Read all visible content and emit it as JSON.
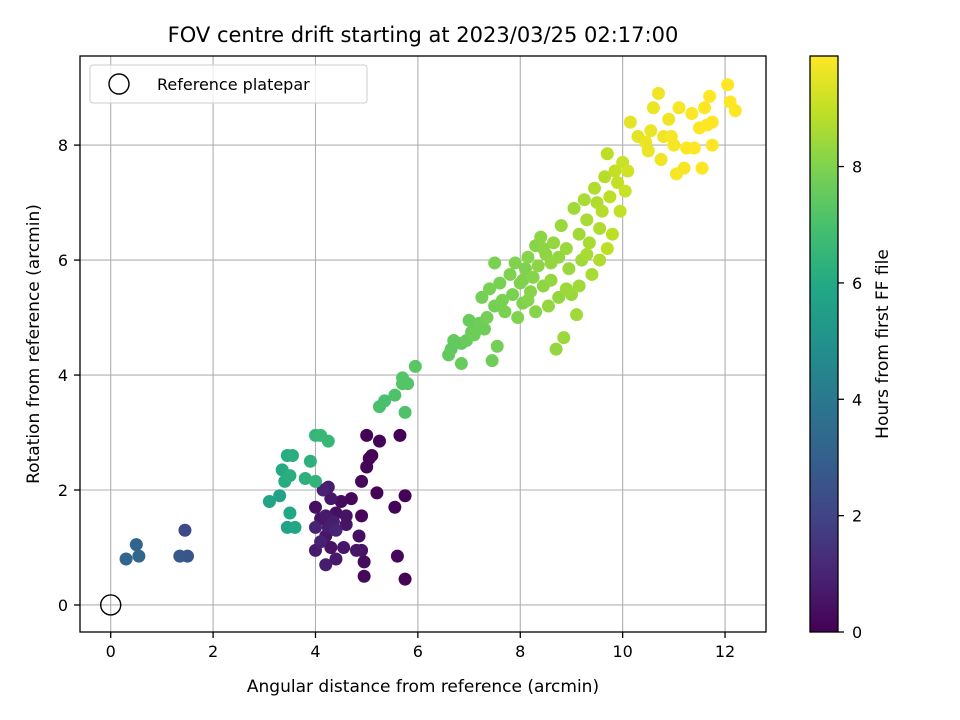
{
  "chart_data": {
    "type": "scatter",
    "title": "FOV centre drift starting at 2023/03/25 02:17:00",
    "xlabel": "Angular distance from reference (arcmin)",
    "ylabel": "Rotation from reference (arcmin)",
    "xlim": [
      -0.6,
      12.8
    ],
    "ylim": [
      -0.47,
      9.55
    ],
    "x_ticks": [
      0,
      2,
      4,
      6,
      8,
      10,
      12
    ],
    "y_ticks": [
      0,
      2,
      4,
      6,
      8
    ],
    "grid": true,
    "colormap": "viridis",
    "colorbar": {
      "label": "Hours from first FF file",
      "range": [
        0,
        9.9
      ],
      "ticks": [
        0,
        2,
        4,
        6,
        8
      ]
    },
    "legend": {
      "position": "top-left",
      "entries": [
        "Reference platepar"
      ]
    },
    "reference_point": {
      "x": 0,
      "y": 0,
      "marker": "open-circle"
    },
    "points": [
      [
        4.0,
        1.7,
        0.4
      ],
      [
        4.1,
        1.5,
        0.5
      ],
      [
        4.2,
        1.2,
        0.6
      ],
      [
        4.3,
        1.0,
        0.5
      ],
      [
        4.0,
        0.95,
        0.7
      ],
      [
        4.5,
        1.8,
        0.3
      ],
      [
        4.4,
        1.6,
        0.4
      ],
      [
        4.6,
        1.4,
        0.5
      ],
      [
        4.7,
        1.85,
        0.2
      ],
      [
        4.3,
        1.85,
        0.6
      ],
      [
        4.2,
        0.7,
        0.8
      ],
      [
        4.4,
        0.8,
        0.7
      ],
      [
        4.8,
        0.95,
        0.6
      ],
      [
        4.9,
        0.95,
        0.5
      ],
      [
        4.95,
        0.75,
        0.3
      ],
      [
        4.95,
        0.5,
        0.2
      ],
      [
        5.6,
        0.85,
        0.2
      ],
      [
        5.75,
        0.45,
        0.1
      ],
      [
        4.1,
        1.1,
        0.9
      ],
      [
        4.25,
        1.35,
        0.8
      ],
      [
        4.4,
        1.3,
        1.0
      ],
      [
        4.15,
        2.0,
        0.9
      ],
      [
        4.25,
        2.05,
        0.8
      ],
      [
        4.85,
        1.2,
        0.4
      ],
      [
        4.55,
        1.0,
        0.6
      ],
      [
        4.9,
        1.55,
        0.2
      ],
      [
        5.0,
        2.4,
        0.1
      ],
      [
        5.05,
        2.55,
        0.1
      ],
      [
        5.1,
        2.6,
        0.15
      ],
      [
        4.9,
        2.15,
        0.2
      ],
      [
        5.25,
        2.85,
        0.1
      ],
      [
        5.0,
        2.95,
        0.05
      ],
      [
        5.55,
        1.7,
        0.1
      ],
      [
        5.65,
        2.95,
        0.05
      ],
      [
        5.75,
        1.9,
        0.05
      ],
      [
        5.2,
        1.95,
        0.1
      ],
      [
        4.6,
        1.55,
        0.5
      ],
      [
        4.2,
        1.55,
        0.7
      ],
      [
        4.35,
        1.45,
        0.85
      ],
      [
        4.0,
        1.35,
        0.95
      ],
      [
        0.3,
        0.8,
        3.3
      ],
      [
        0.55,
        0.85,
        3.3
      ],
      [
        0.5,
        1.05,
        3.2
      ],
      [
        1.35,
        0.85,
        2.7
      ],
      [
        1.5,
        0.85,
        2.6
      ],
      [
        1.45,
        1.3,
        2.2
      ],
      [
        3.1,
        1.8,
        5.8
      ],
      [
        3.3,
        1.9,
        5.7
      ],
      [
        3.45,
        1.35,
        5.7
      ],
      [
        3.6,
        1.35,
        5.9
      ],
      [
        3.5,
        1.6,
        5.9
      ],
      [
        3.4,
        2.15,
        6.1
      ],
      [
        3.35,
        2.35,
        6.0
      ],
      [
        3.5,
        2.25,
        6.2
      ],
      [
        3.55,
        2.6,
        6.2
      ],
      [
        3.45,
        2.6,
        6.1
      ],
      [
        3.8,
        2.2,
        6.3
      ],
      [
        3.9,
        2.5,
        6.3
      ],
      [
        4.0,
        2.15,
        6.4
      ],
      [
        4.0,
        2.95,
        6.5
      ],
      [
        4.1,
        2.95,
        6.6
      ],
      [
        4.25,
        2.85,
        6.6
      ],
      [
        5.25,
        3.45,
        7.0
      ],
      [
        5.35,
        3.55,
        7.0
      ],
      [
        5.55,
        3.65,
        7.1
      ],
      [
        5.75,
        3.35,
        7.1
      ],
      [
        5.7,
        3.85,
        7.2
      ],
      [
        5.8,
        3.85,
        7.2
      ],
      [
        5.7,
        3.95,
        7.2
      ],
      [
        5.95,
        4.15,
        7.3
      ],
      [
        6.6,
        4.35,
        7.5
      ],
      [
        6.65,
        4.45,
        7.4
      ],
      [
        6.7,
        4.6,
        7.5
      ],
      [
        6.85,
        4.55,
        7.5
      ],
      [
        6.85,
        4.2,
        7.6
      ],
      [
        6.95,
        4.6,
        7.6
      ],
      [
        7.0,
        4.95,
        7.6
      ],
      [
        7.1,
        4.7,
        7.7
      ],
      [
        7.2,
        4.9,
        7.7
      ],
      [
        7.3,
        4.8,
        7.7
      ],
      [
        7.45,
        4.25,
        7.7
      ],
      [
        7.55,
        4.5,
        7.8
      ],
      [
        7.35,
        5.0,
        7.8
      ],
      [
        7.5,
        5.2,
        7.8
      ],
      [
        7.25,
        5.35,
        7.8
      ],
      [
        7.4,
        5.5,
        7.9
      ],
      [
        7.6,
        5.6,
        7.9
      ],
      [
        7.7,
        5.1,
        7.9
      ],
      [
        7.85,
        5.4,
        7.9
      ],
      [
        7.8,
        5.75,
        8.0
      ],
      [
        7.9,
        5.95,
        8.0
      ],
      [
        8.0,
        5.6,
        8.0
      ],
      [
        8.05,
        5.25,
        8.0
      ],
      [
        8.1,
        5.85,
        8.0
      ],
      [
        8.15,
        6.05,
        8.1
      ],
      [
        8.2,
        5.45,
        8.1
      ],
      [
        8.25,
        5.7,
        8.1
      ],
      [
        8.3,
        6.25,
        8.1
      ],
      [
        8.35,
        5.9,
        8.2
      ],
      [
        8.4,
        6.4,
        8.2
      ],
      [
        8.45,
        5.55,
        8.2
      ],
      [
        8.5,
        6.1,
        8.2
      ],
      [
        8.55,
        5.2,
        8.3
      ],
      [
        8.6,
        5.95,
        8.3
      ],
      [
        8.65,
        6.3,
        8.3
      ],
      [
        8.7,
        4.45,
        8.3
      ],
      [
        8.75,
        5.35,
        8.3
      ],
      [
        8.8,
        6.6,
        8.4
      ],
      [
        8.85,
        4.65,
        8.4
      ],
      [
        8.9,
        6.2,
        8.4
      ],
      [
        9.0,
        5.4,
        8.4
      ],
      [
        9.05,
        6.9,
        8.5
      ],
      [
        9.1,
        5.05,
        8.5
      ],
      [
        9.15,
        6.45,
        8.5
      ],
      [
        9.2,
        6.0,
        8.5
      ],
      [
        9.25,
        7.05,
        8.6
      ],
      [
        9.3,
        6.7,
        8.6
      ],
      [
        9.35,
        6.3,
        8.6
      ],
      [
        9.4,
        5.75,
        8.6
      ],
      [
        9.45,
        7.25,
        8.7
      ],
      [
        9.5,
        7.0,
        8.7
      ],
      [
        9.55,
        6.55,
        8.7
      ],
      [
        9.6,
        6.85,
        8.8
      ],
      [
        9.65,
        7.45,
        8.8
      ],
      [
        9.7,
        7.85,
        8.9
      ],
      [
        9.75,
        7.1,
        8.9
      ],
      [
        9.8,
        6.45,
        8.9
      ],
      [
        9.85,
        7.55,
        9.0
      ],
      [
        9.9,
        7.35,
        9.0
      ],
      [
        9.95,
        6.85,
        9.0
      ],
      [
        10.0,
        7.7,
        9.1
      ],
      [
        10.05,
        7.2,
        9.1
      ],
      [
        10.1,
        7.55,
        9.2
      ],
      [
        7.5,
        5.95,
        7.9
      ],
      [
        7.95,
        5.0,
        8.0
      ],
      [
        8.3,
        5.1,
        8.1
      ],
      [
        8.15,
        5.3,
        8.1
      ],
      [
        8.6,
        5.65,
        8.3
      ],
      [
        8.95,
        5.85,
        8.4
      ],
      [
        9.3,
        6.1,
        8.6
      ],
      [
        9.15,
        5.55,
        8.5
      ],
      [
        8.75,
        6.05,
        8.3
      ],
      [
        8.45,
        6.2,
        8.2
      ],
      [
        8.05,
        5.65,
        8.0
      ],
      [
        7.65,
        5.3,
        7.9
      ],
      [
        9.7,
        6.2,
        8.9
      ],
      [
        9.55,
        6.0,
        8.7
      ],
      [
        8.9,
        5.5,
        8.4
      ],
      [
        7.05,
        4.75,
        7.6
      ],
      [
        10.15,
        8.4,
        9.5
      ],
      [
        10.3,
        8.15,
        9.5
      ],
      [
        10.5,
        7.9,
        9.6
      ],
      [
        10.55,
        8.25,
        9.6
      ],
      [
        10.6,
        8.65,
        9.6
      ],
      [
        10.7,
        8.9,
        9.7
      ],
      [
        10.75,
        7.75,
        9.7
      ],
      [
        10.8,
        8.15,
        9.7
      ],
      [
        10.9,
        8.45,
        9.7
      ],
      [
        11.0,
        8.0,
        9.8
      ],
      [
        11.05,
        7.5,
        9.8
      ],
      [
        11.1,
        8.65,
        9.8
      ],
      [
        11.2,
        7.6,
        9.8
      ],
      [
        11.25,
        7.95,
        9.9
      ],
      [
        11.35,
        8.55,
        9.9
      ],
      [
        11.5,
        8.3,
        9.9
      ],
      [
        11.55,
        7.6,
        9.9
      ],
      [
        11.6,
        8.65,
        9.9
      ],
      [
        11.65,
        8.35,
        9.9
      ],
      [
        11.75,
        8.4,
        9.9
      ],
      [
        11.7,
        8.85,
        9.9
      ],
      [
        11.75,
        8.0,
        9.9
      ],
      [
        12.05,
        9.05,
        9.9
      ],
      [
        12.1,
        8.75,
        9.9
      ],
      [
        12.2,
        8.6,
        9.9
      ],
      [
        10.95,
        8.15,
        9.8
      ],
      [
        10.45,
        8.05,
        9.6
      ],
      [
        11.4,
        7.95,
        9.9
      ]
    ]
  }
}
